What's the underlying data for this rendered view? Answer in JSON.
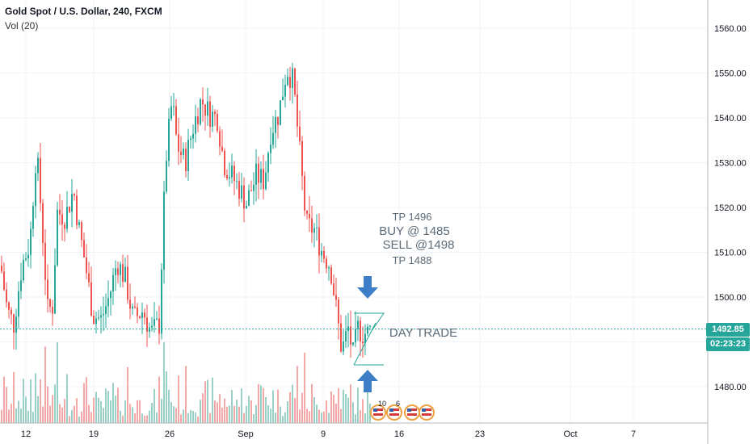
{
  "header": {
    "title": "Gold Spot / U.S. Dollar, 240, FXCM",
    "volume_label": "Vol (20)"
  },
  "chart_data": {
    "type": "candlestick",
    "symbol": "Gold Spot / U.S. Dollar",
    "interval": "240",
    "source": "FXCM",
    "y_axis": {
      "range": [
        1471,
        1567
      ],
      "ticks": [
        "1560.00",
        "1550.00",
        "1540.00",
        "1530.00",
        "1520.00",
        "1510.00",
        "1500.00",
        "1490.00",
        "1480.00"
      ]
    },
    "x_axis": {
      "ticks": [
        "12",
        "19",
        "26",
        "Sep",
        "9",
        "16",
        "23",
        "Oct",
        "7"
      ]
    },
    "last_price": "1492.85",
    "countdown": "02:23:23",
    "colors": {
      "up": "#26a69a",
      "down": "#ef5350",
      "vol_up": "#9ad0c6",
      "vol_down": "#f4a9a8"
    },
    "price_path": [
      [
        0,
        1507
      ],
      [
        8,
        1497
      ],
      [
        16,
        1494
      ],
      [
        26,
        1507
      ],
      [
        36,
        1512
      ],
      [
        44,
        1533
      ],
      [
        50,
        1519
      ],
      [
        58,
        1497
      ],
      [
        64,
        1498
      ],
      [
        70,
        1519
      ],
      [
        80,
        1518
      ],
      [
        90,
        1524
      ],
      [
        96,
        1516
      ],
      [
        104,
        1508
      ],
      [
        114,
        1496
      ],
      [
        124,
        1495
      ],
      [
        134,
        1500
      ],
      [
        144,
        1508
      ],
      [
        154,
        1504
      ],
      [
        164,
        1495
      ],
      [
        176,
        1497
      ],
      [
        186,
        1492
      ],
      [
        196,
        1494
      ],
      [
        204,
        1530
      ],
      [
        212,
        1544
      ],
      [
        218,
        1534
      ],
      [
        228,
        1530
      ],
      [
        238,
        1538
      ],
      [
        248,
        1544
      ],
      [
        258,
        1541
      ],
      [
        268,
        1540
      ],
      [
        276,
        1530
      ],
      [
        286,
        1527
      ],
      [
        296,
        1524
      ],
      [
        304,
        1521
      ],
      [
        316,
        1527
      ],
      [
        326,
        1526
      ],
      [
        334,
        1537
      ],
      [
        344,
        1541
      ],
      [
        354,
        1551
      ],
      [
        362,
        1548
      ],
      [
        370,
        1532
      ],
      [
        378,
        1516
      ],
      [
        388,
        1515
      ],
      [
        398,
        1510
      ],
      [
        408,
        1507
      ],
      [
        416,
        1496
      ],
      [
        422,
        1488
      ],
      [
        430,
        1493
      ],
      [
        436,
        1487
      ],
      [
        442,
        1493
      ],
      [
        448,
        1492
      ],
      [
        454,
        1492
      ],
      [
        458,
        1492.85
      ]
    ],
    "annotations": {
      "tp_top": "TP 1496",
      "buy": "BUY @ 1485",
      "sell": "SELL @1498",
      "tp_bottom": "TP 1488",
      "day_trade": "DAY TRADE"
    },
    "events": [
      {
        "icon": "us-flag-icon",
        "label": "10"
      },
      {
        "icon": "us-flag-icon",
        "label": "6"
      },
      {
        "icon": "us-flag-icon",
        "label": ""
      },
      {
        "icon": "us-flag-icon",
        "label": ""
      }
    ]
  }
}
